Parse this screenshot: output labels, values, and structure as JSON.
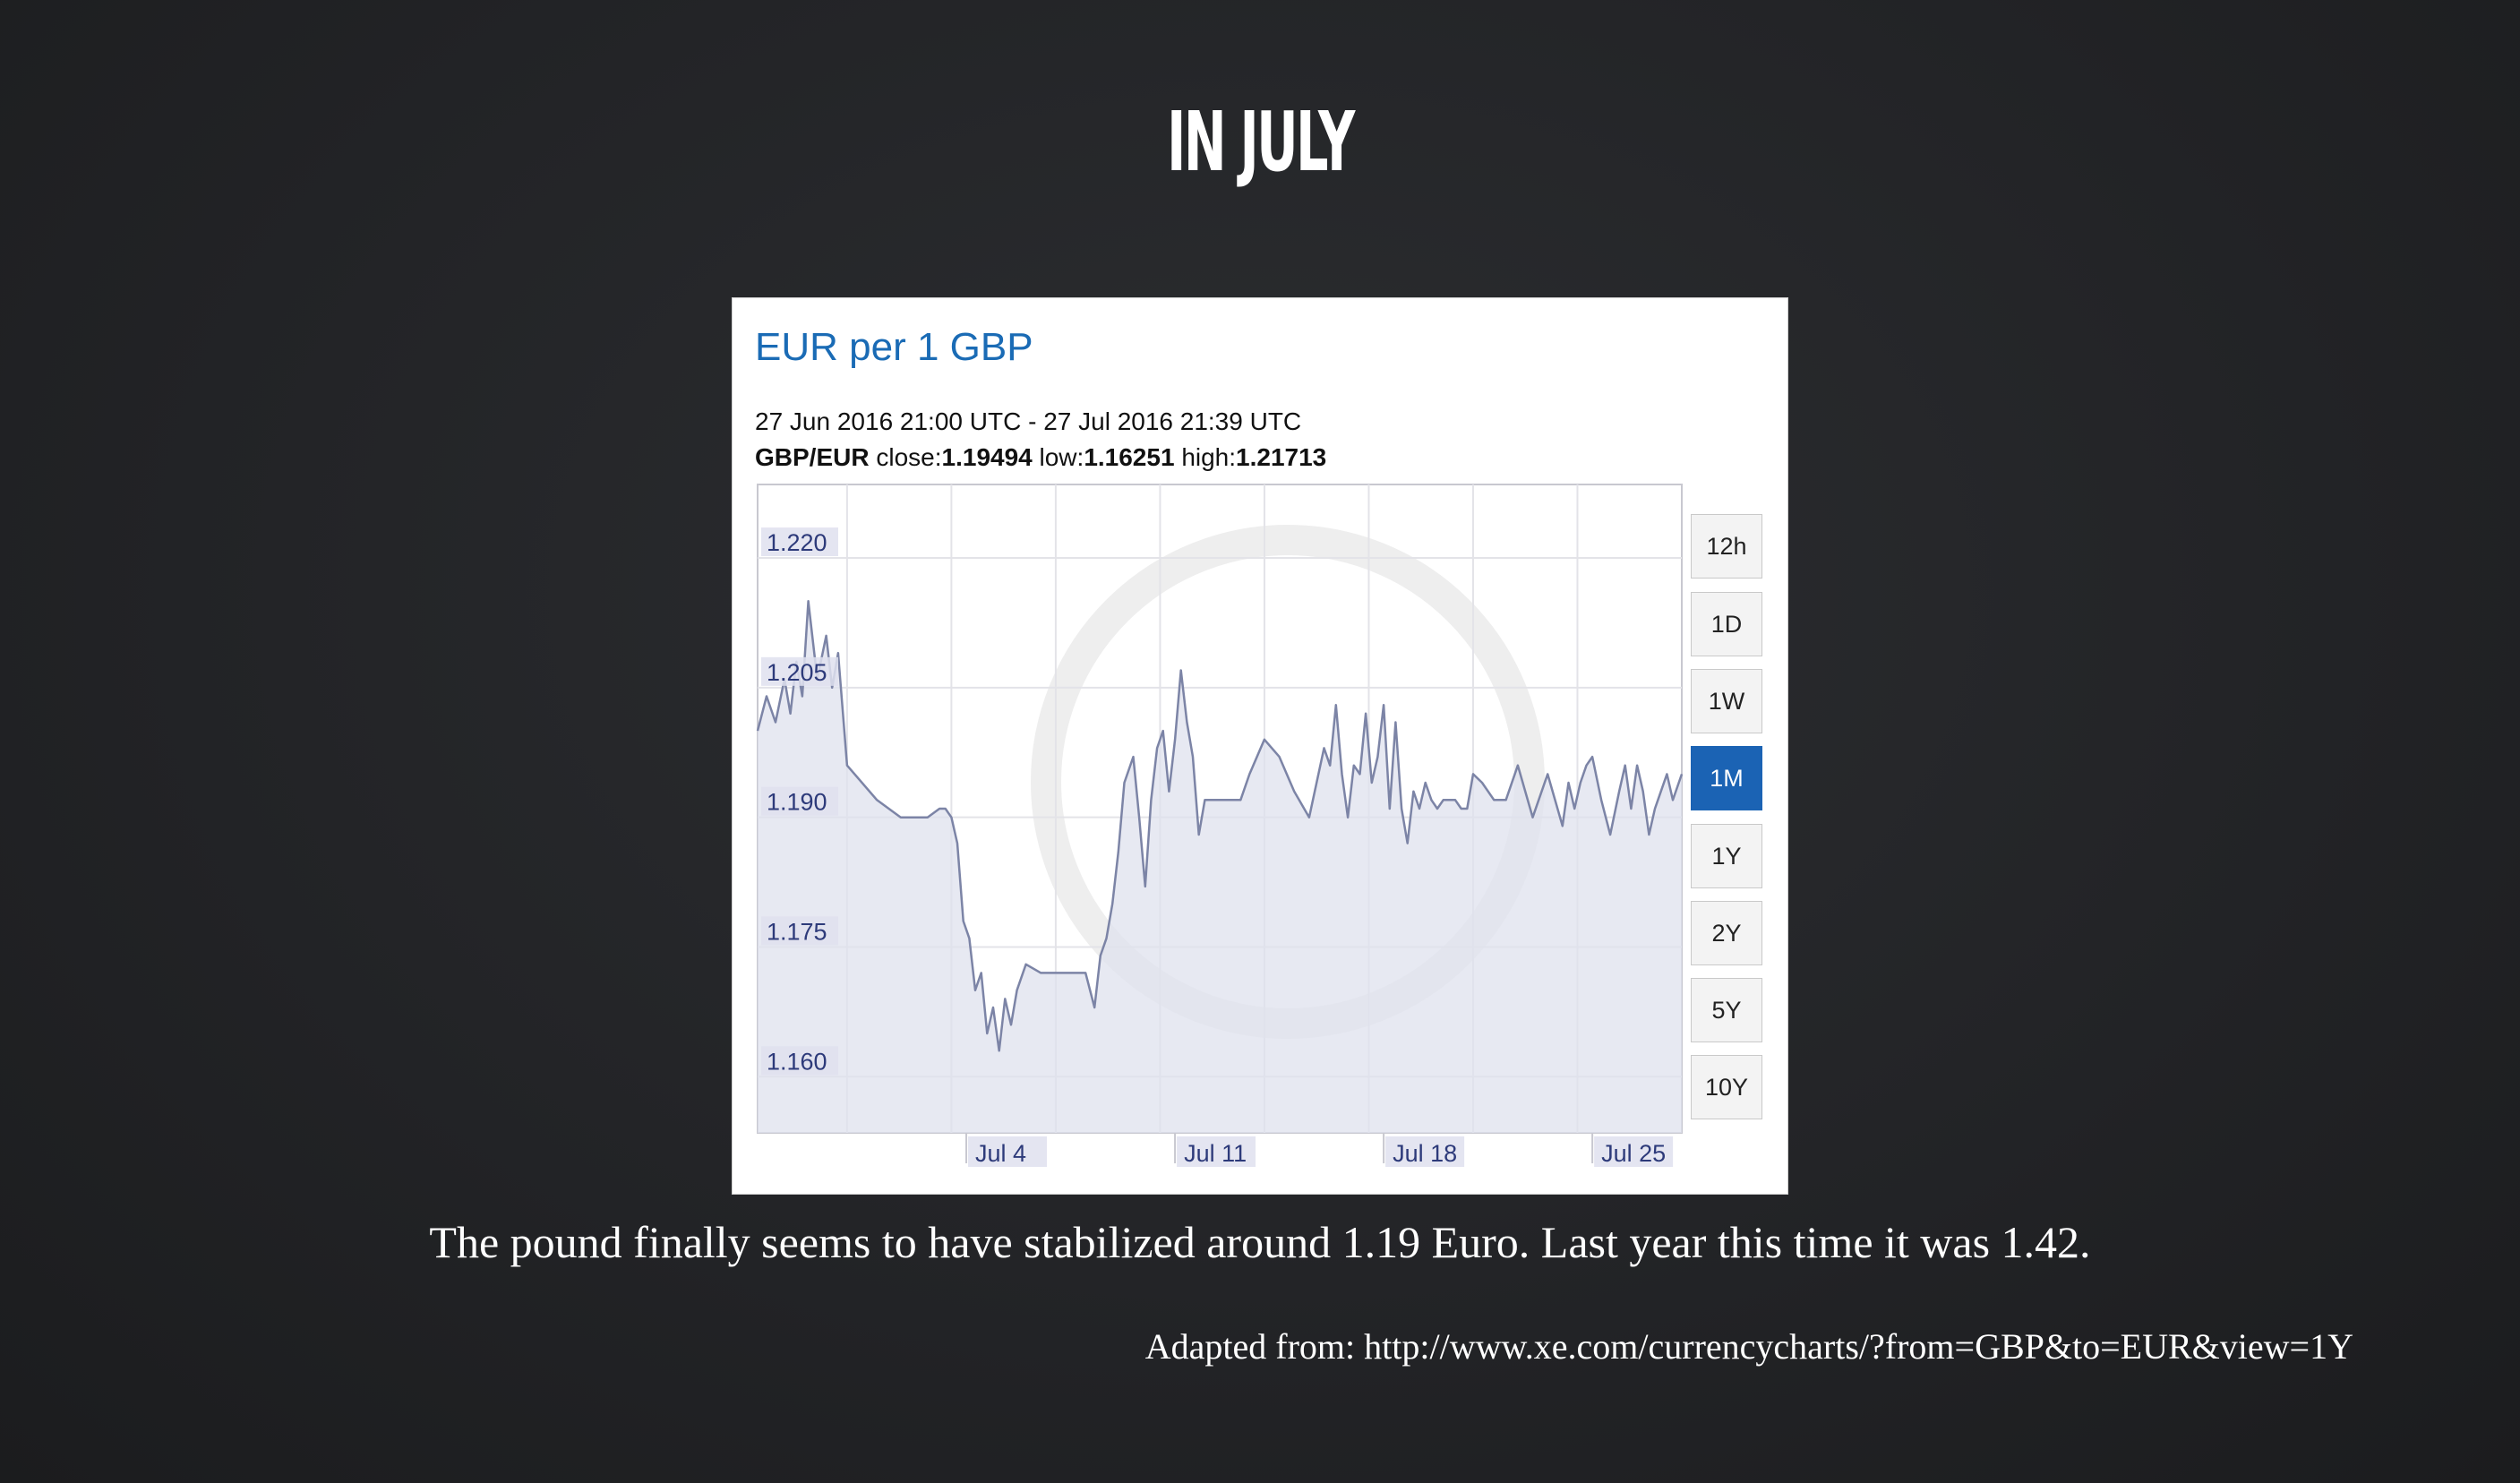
{
  "slide": {
    "title": "IN JULY",
    "caption": "The pound finally seems to have stabilized around 1.19 Euro. Last year this time it was 1.42.",
    "source_note": "Adapted from: http://www.xe.com/currencycharts/?from=GBP&to=EUR&view=1Y"
  },
  "chart_panel": {
    "heading": "EUR per 1 GBP",
    "date_range": "27 Jun 2016 21:00 UTC - 27 Jul 2016 21:39 UTC",
    "pair": "GBP/EUR",
    "close_label": "close:",
    "close": "1.19494",
    "low_label": "low:",
    "low": "1.16251",
    "high_label": "high:",
    "high": "1.21713",
    "timeframes": [
      {
        "label": "12h",
        "active": false
      },
      {
        "label": "1D",
        "active": false
      },
      {
        "label": "1W",
        "active": false
      },
      {
        "label": "1M",
        "active": true
      },
      {
        "label": "1Y",
        "active": false
      },
      {
        "label": "2Y",
        "active": false
      },
      {
        "label": "5Y",
        "active": false
      },
      {
        "label": "10Y",
        "active": false
      }
    ],
    "colors": {
      "heading": "#1a6bb5",
      "active_button": "#1b63b4",
      "line": "#7c84a6",
      "fill": "#dfe1ee",
      "tick_label_bg": "#dfe1ee",
      "tick_label_text": "#2d3a7a"
    }
  },
  "chart_data": {
    "type": "area",
    "title": "EUR per 1 GBP",
    "xlabel": "",
    "ylabel": "",
    "xlim": [
      -7.0,
      24.0
    ],
    "ylim": [
      1.1535,
      1.2285
    ],
    "y_ticks": [
      1.16,
      1.175,
      1.19,
      1.205,
      1.22
    ],
    "y_tick_labels": [
      "1.160",
      "1.175",
      "1.190",
      "1.205",
      "1.220"
    ],
    "x_ticks": [
      0,
      7,
      14,
      21
    ],
    "x_tick_labels": [
      "Jul 4",
      "Jul 11",
      "Jul 18",
      "Jul 25"
    ],
    "grid": true,
    "series": [
      {
        "x": [
          -7.0,
          -6.7,
          -6.4,
          -6.1,
          -5.9,
          -5.7,
          -5.5,
          -5.3,
          -5.0,
          -4.7,
          -4.5,
          -4.3,
          -4.0,
          -3.0,
          -2.2,
          -1.7,
          -1.3,
          -0.9,
          -0.7,
          -0.5,
          -0.3,
          -0.1,
          0.1,
          0.3,
          0.5,
          0.7,
          0.9,
          1.1,
          1.3,
          1.5,
          1.7,
          2.0,
          2.5,
          3.0,
          3.5,
          4.0,
          4.3,
          4.5,
          4.7,
          4.9,
          5.1,
          5.3,
          5.6,
          5.8,
          6.0,
          6.2,
          6.4,
          6.6,
          6.8,
          7.0,
          7.2,
          7.4,
          7.6,
          7.8,
          8.0,
          8.2,
          8.4,
          8.6,
          8.8,
          9.0,
          9.2,
          9.5,
          10.0,
          10.5,
          11.0,
          11.5,
          12.0,
          12.2,
          12.4,
          12.6,
          12.8,
          13.0,
          13.2,
          13.4,
          13.6,
          13.8,
          14.0,
          14.2,
          14.4,
          14.6,
          14.8,
          15.0,
          15.2,
          15.4,
          15.6,
          15.8,
          16.0,
          16.2,
          16.4,
          16.6,
          16.8,
          17.0,
          17.3,
          17.7,
          18.1,
          18.5,
          19.0,
          19.5,
          20.0,
          20.2,
          20.4,
          20.6,
          20.8,
          21.0,
          21.3,
          21.6,
          21.9,
          22.1,
          22.3,
          22.5,
          22.7,
          22.9,
          23.1,
          23.3,
          23.5,
          23.7,
          24.0
        ],
        "y": [
          1.2,
          1.204,
          1.201,
          1.206,
          1.202,
          1.208,
          1.204,
          1.215,
          1.206,
          1.211,
          1.205,
          1.209,
          1.196,
          1.192,
          1.19,
          1.19,
          1.19,
          1.191,
          1.191,
          1.19,
          1.187,
          1.178,
          1.176,
          1.17,
          1.172,
          1.165,
          1.168,
          1.163,
          1.169,
          1.166,
          1.17,
          1.173,
          1.172,
          1.172,
          1.172,
          1.172,
          1.168,
          1.174,
          1.176,
          1.18,
          1.186,
          1.194,
          1.197,
          1.19,
          1.182,
          1.192,
          1.198,
          1.2,
          1.193,
          1.199,
          1.207,
          1.201,
          1.197,
          1.188,
          1.192,
          1.192,
          1.192,
          1.192,
          1.192,
          1.192,
          1.192,
          1.195,
          1.199,
          1.197,
          1.193,
          1.19,
          1.198,
          1.196,
          1.203,
          1.195,
          1.19,
          1.196,
          1.195,
          1.202,
          1.194,
          1.197,
          1.203,
          1.191,
          1.201,
          1.191,
          1.187,
          1.193,
          1.191,
          1.194,
          1.192,
          1.191,
          1.192,
          1.192,
          1.192,
          1.191,
          1.191,
          1.195,
          1.194,
          1.192,
          1.192,
          1.196,
          1.19,
          1.195,
          1.189,
          1.194,
          1.191,
          1.194,
          1.196,
          1.197,
          1.192,
          1.188,
          1.193,
          1.196,
          1.191,
          1.196,
          1.193,
          1.188,
          1.191,
          1.193,
          1.195,
          1.192,
          1.195
        ]
      }
    ]
  }
}
